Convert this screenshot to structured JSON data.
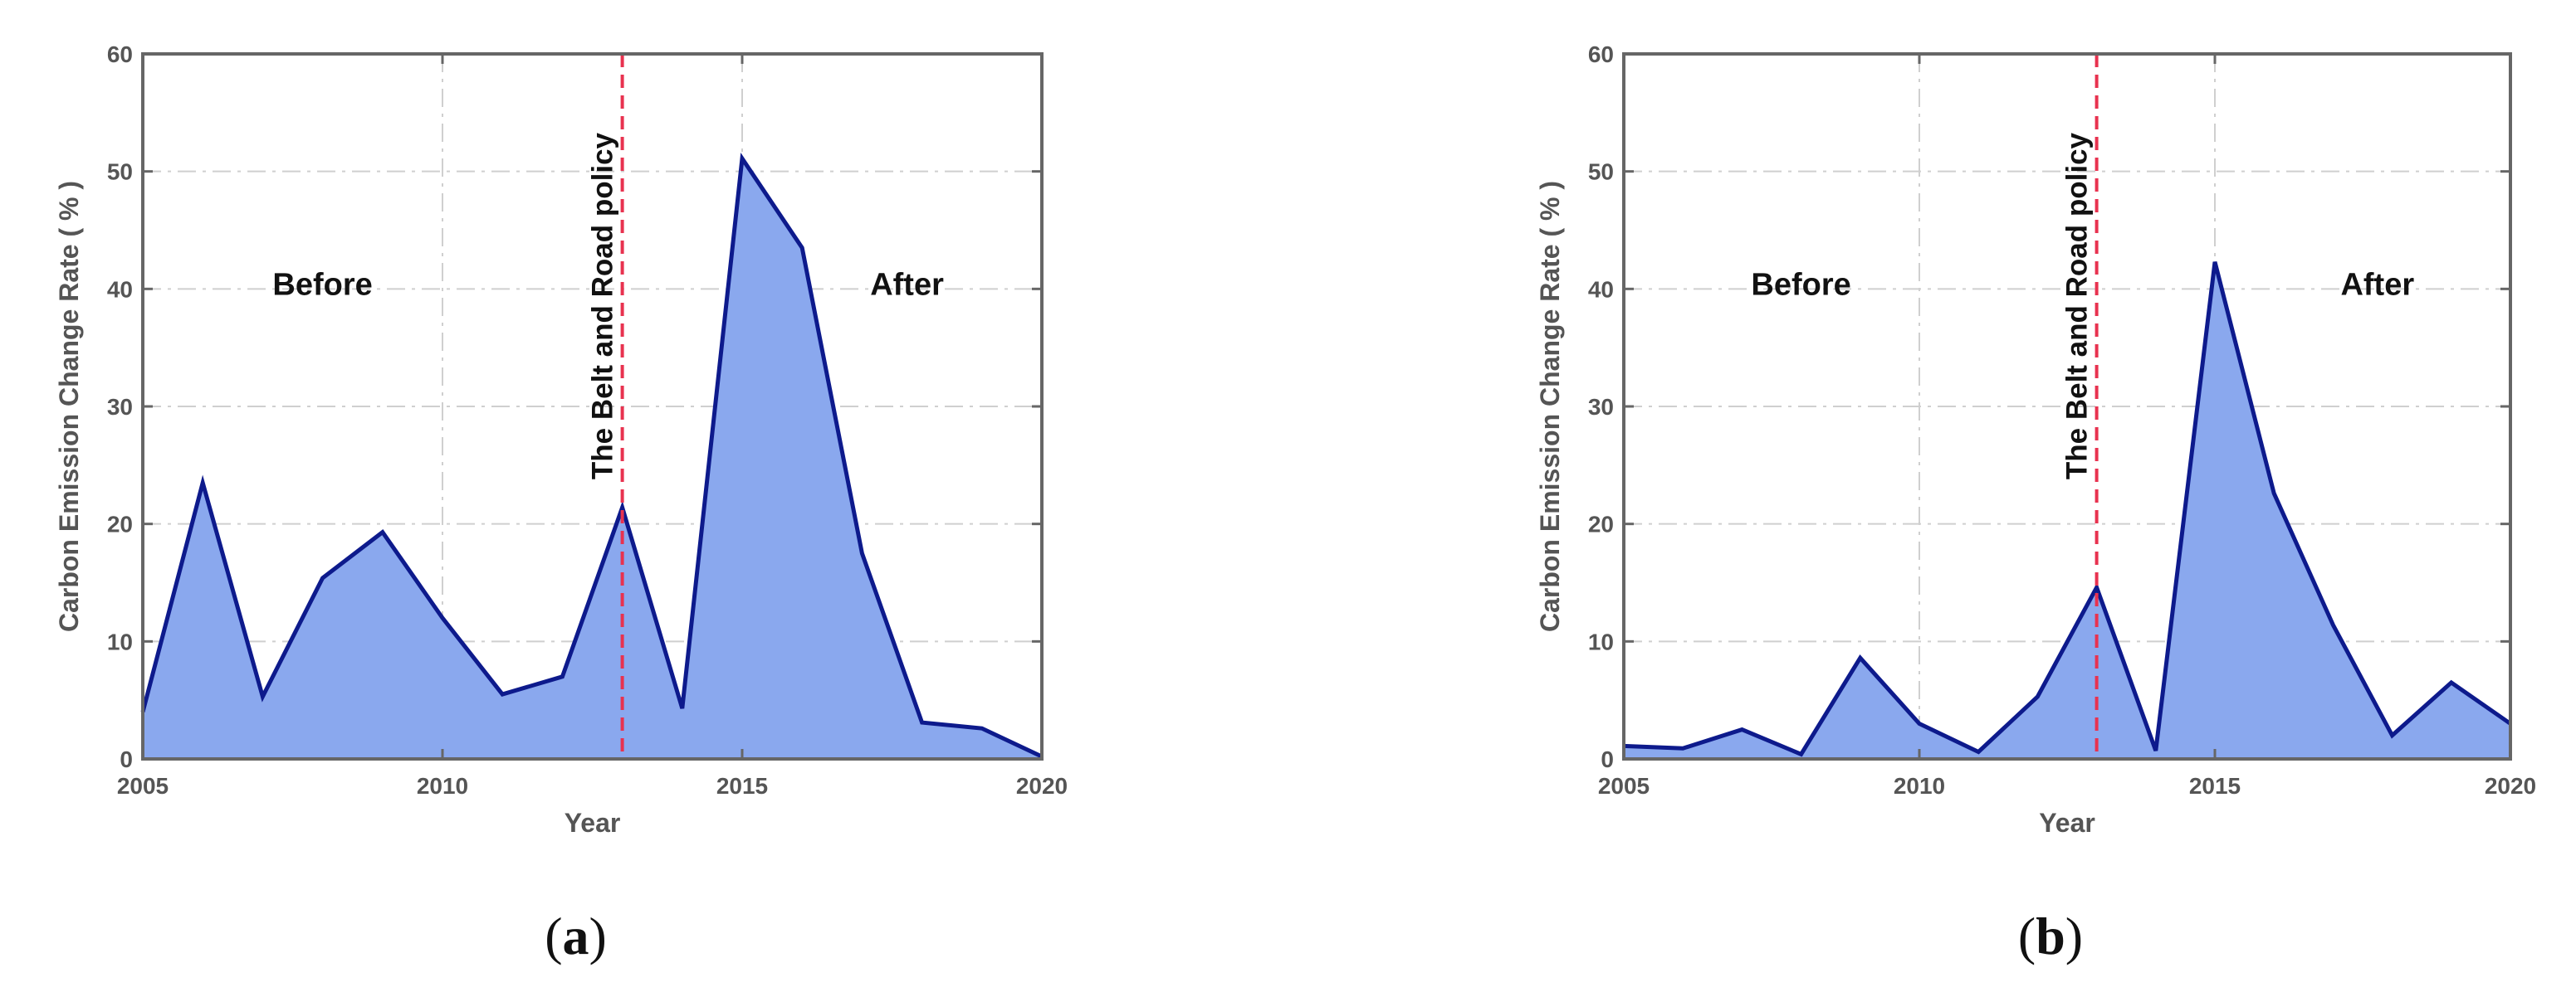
{
  "chart_data": [
    {
      "type": "area",
      "panel_label": "(a)",
      "panel_letter": "a",
      "title": "",
      "xlabel": "Year",
      "ylabel": "Carbon Emission Change Rate ( % )",
      "xlim": [
        2005,
        2020
      ],
      "ylim": [
        0,
        60
      ],
      "xticks": [
        2005,
        2010,
        2015,
        2020
      ],
      "yticks": [
        0,
        10,
        20,
        30,
        40,
        50,
        60
      ],
      "grid": true,
      "x": [
        2005,
        2006,
        2007,
        2008,
        2009,
        2010,
        2011,
        2012,
        2013,
        2014,
        2015,
        2016,
        2017,
        2018,
        2019,
        2020
      ],
      "series": [
        {
          "values": [
            4.0,
            23.5,
            5.3,
            15.4,
            19.3,
            12.0,
            5.5,
            7.0,
            21.4,
            4.3,
            51.1,
            43.5,
            17.5,
            3.1,
            2.6,
            0.2
          ]
        }
      ],
      "policy_line": {
        "x": 2013,
        "label": "The Belt and Road policy"
      },
      "annotations": [
        {
          "text": "Before",
          "x": 2008.0,
          "y": 39.5
        },
        {
          "text": "After",
          "x": 2017.75,
          "y": 39.5
        }
      ],
      "colors": {
        "fill": "#8aa8ee",
        "line": "#0d1a8c",
        "policy": "#e8324f"
      }
    },
    {
      "type": "area",
      "panel_label": "(b)",
      "panel_letter": "b",
      "title": "",
      "xlabel": "Year",
      "ylabel": "Carbon Emission Change Rate ( % )",
      "xlim": [
        2005,
        2020
      ],
      "ylim": [
        0,
        60
      ],
      "xticks": [
        2005,
        2010,
        2015,
        2020
      ],
      "yticks": [
        0,
        10,
        20,
        30,
        40,
        50,
        60
      ],
      "grid": true,
      "x": [
        2005,
        2006,
        2007,
        2008,
        2009,
        2010,
        2011,
        2012,
        2013,
        2014,
        2015,
        2016,
        2017,
        2018,
        2019,
        2020
      ],
      "series": [
        {
          "values": [
            1.1,
            0.9,
            2.5,
            0.4,
            8.6,
            3.0,
            0.6,
            5.3,
            14.6,
            0.7,
            42.3,
            22.6,
            11.4,
            2.0,
            6.5,
            3.0
          ]
        }
      ],
      "policy_line": {
        "x": 2013,
        "label": "The Belt and Road policy"
      },
      "annotations": [
        {
          "text": "Before",
          "x": 2008.0,
          "y": 39.5
        },
        {
          "text": "After",
          "x": 2017.75,
          "y": 39.5
        }
      ],
      "colors": {
        "fill": "#8aa8ee",
        "line": "#0d1a8c",
        "policy": "#e8324f"
      }
    }
  ]
}
